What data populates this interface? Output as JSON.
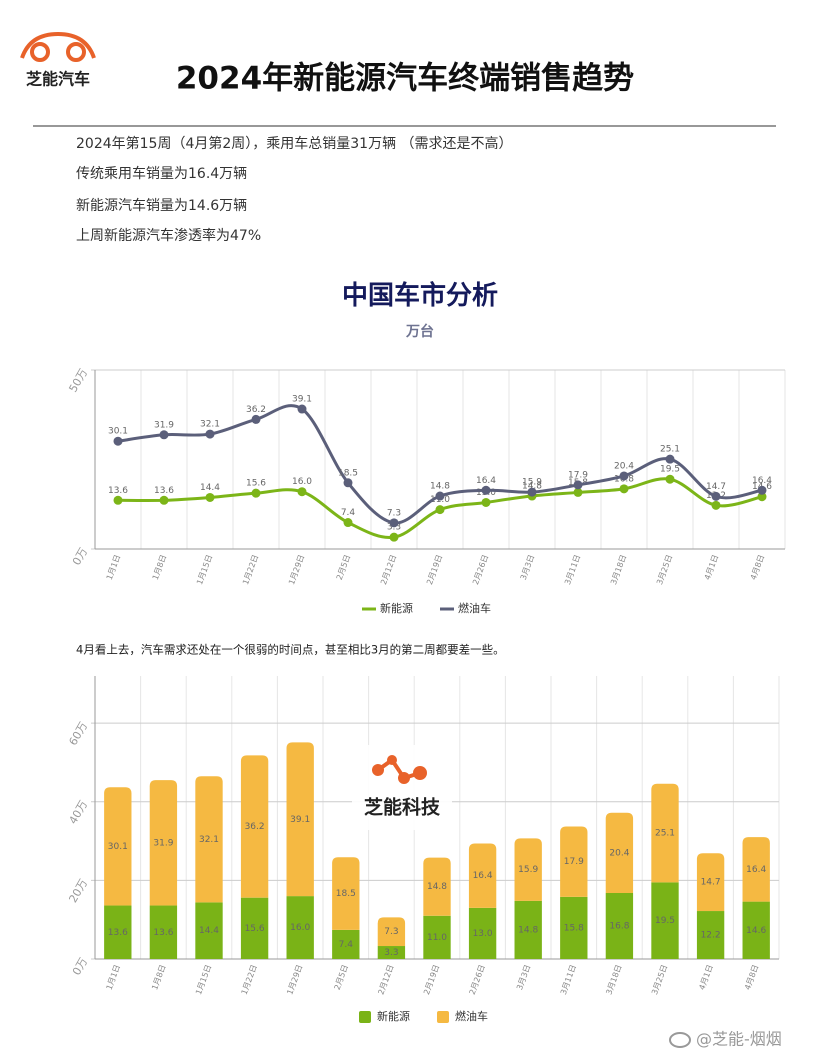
{
  "header": {
    "logo": "芝能汽车",
    "title": "2024年新能源汽车终端销售趋势"
  },
  "summary": [
    "2024年第15周（4月第2周），乘用车总销量31万辆 （需求还是不高）",
    "传统乘用车销量为16.4万辆",
    "新能源汽车销量为14.6万辆",
    "上周新能源汽车渗透率为47%"
  ],
  "note": "4月看上去，汽车需求还处在一个很弱的时间点，甚至相比3月的第二周都要差一些。",
  "watermark": "芝能科技",
  "footer": "@芝能-烟烟",
  "chart_data": [
    {
      "type": "line",
      "title": "中国车市分析",
      "subtitle": "万台",
      "categories": [
        "1月1日",
        "1月8日",
        "1月15日",
        "1月22日",
        "1月29日",
        "2月5日",
        "2月12日",
        "2月19日",
        "2月26日",
        "3月3日",
        "3月11日",
        "3月18日",
        "3月25日",
        "4月1日",
        "4月8日"
      ],
      "series": [
        {
          "name": "新能源",
          "color": "#7cb518",
          "values": [
            13.6,
            13.6,
            14.4,
            15.6,
            16.0,
            7.4,
            3.3,
            11.0,
            13.0,
            14.8,
            15.8,
            16.8,
            19.5,
            12.2,
            14.6
          ],
          "value_labels": [
            "13.6",
            "13.6",
            "14.4",
            "15.6",
            "16.0",
            "7.4",
            "3.3",
            "11.0",
            "13.0",
            "14.8",
            "15.8",
            "16.8",
            "19.5",
            "12.2",
            "14.6"
          ]
        },
        {
          "name": "燃油车",
          "color": "#5b5f7a",
          "values": [
            30.1,
            31.9,
            32.1,
            36.2,
            39.1,
            18.5,
            7.3,
            14.8,
            16.4,
            15.9,
            17.9,
            20.4,
            25.1,
            14.7,
            16.4
          ]
        }
      ],
      "ylim": [
        0,
        50
      ],
      "yticks": [
        {
          "value": 0,
          "label": "0万"
        },
        {
          "value": 50,
          "label": "50万"
        }
      ],
      "grid": true,
      "legend": "bottom"
    },
    {
      "type": "bar",
      "stacked": true,
      "categories": [
        "1月1日",
        "1月8日",
        "1月15日",
        "1月22日",
        "1月29日",
        "2月5日",
        "2月12日",
        "2月19日",
        "2月26日",
        "3月3日",
        "3月11日",
        "3月18日",
        "3月25日",
        "4月1日",
        "4月8日"
      ],
      "series": [
        {
          "name": "新能源",
          "color": "#7ab317",
          "values": [
            13.6,
            13.6,
            14.4,
            15.6,
            16.0,
            7.4,
            3.3,
            11.0,
            13.0,
            14.8,
            15.8,
            16.8,
            19.5,
            12.2,
            14.6
          ],
          "value_labels": [
            "13.6",
            "13.6",
            "14.4",
            "15.6",
            "16.0",
            "7.4",
            "3.3",
            "11.0",
            "13.0",
            "14.8",
            "15.8",
            "16.8",
            "19.5",
            "12.2",
            "14.6"
          ]
        },
        {
          "name": "燃油车",
          "color": "#f5b942",
          "values": [
            30.1,
            31.9,
            32.1,
            36.2,
            39.1,
            18.5,
            7.3,
            14.8,
            16.4,
            15.9,
            17.9,
            20.4,
            25.1,
            14.7,
            16.4
          ]
        }
      ],
      "ylim": [
        0,
        72
      ],
      "yticks": [
        {
          "value": 0,
          "label": "0万"
        },
        {
          "value": 20,
          "label": "20万"
        },
        {
          "value": 40,
          "label": "40万"
        },
        {
          "value": 60,
          "label": "60万"
        }
      ],
      "grid": true,
      "legend": "bottom"
    }
  ]
}
